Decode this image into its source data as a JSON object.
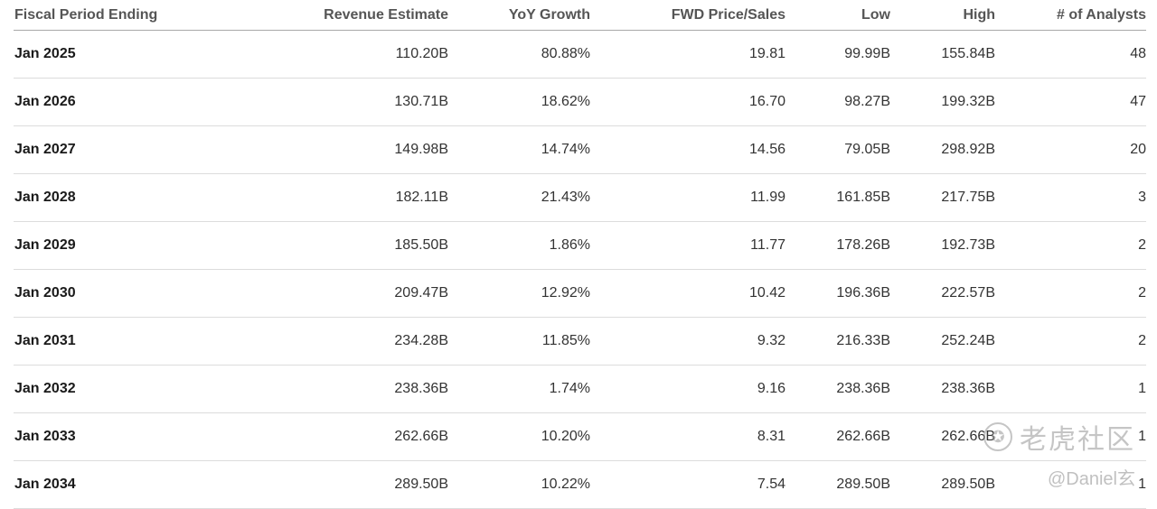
{
  "table": {
    "headers": [
      "Fiscal Period Ending",
      "Revenue Estimate",
      "YoY Growth",
      "FWD Price/Sales",
      "Low",
      "High",
      "# of Analysts"
    ],
    "rows": [
      [
        "Jan 2025",
        "110.20B",
        "80.88%",
        "19.81",
        "99.99B",
        "155.84B",
        "48"
      ],
      [
        "Jan 2026",
        "130.71B",
        "18.62%",
        "16.70",
        "98.27B",
        "199.32B",
        "47"
      ],
      [
        "Jan 2027",
        "149.98B",
        "14.74%",
        "14.56",
        "79.05B",
        "298.92B",
        "20"
      ],
      [
        "Jan 2028",
        "182.11B",
        "21.43%",
        "11.99",
        "161.85B",
        "217.75B",
        "3"
      ],
      [
        "Jan 2029",
        "185.50B",
        "1.86%",
        "11.77",
        "178.26B",
        "192.73B",
        "2"
      ],
      [
        "Jan 2030",
        "209.47B",
        "12.92%",
        "10.42",
        "196.36B",
        "222.57B",
        "2"
      ],
      [
        "Jan 2031",
        "234.28B",
        "11.85%",
        "9.32",
        "216.33B",
        "252.24B",
        "2"
      ],
      [
        "Jan 2032",
        "238.36B",
        "1.74%",
        "9.16",
        "238.36B",
        "238.36B",
        "1"
      ],
      [
        "Jan 2033",
        "262.66B",
        "10.20%",
        "8.31",
        "262.66B",
        "262.66B",
        "1"
      ],
      [
        "Jan 2034",
        "289.50B",
        "10.22%",
        "7.54",
        "289.50B",
        "289.50B",
        "1"
      ]
    ]
  },
  "watermark": {
    "logo_icon": "tiger-logo-icon",
    "brand": "老虎社区",
    "handle": "@Daniel玄"
  }
}
